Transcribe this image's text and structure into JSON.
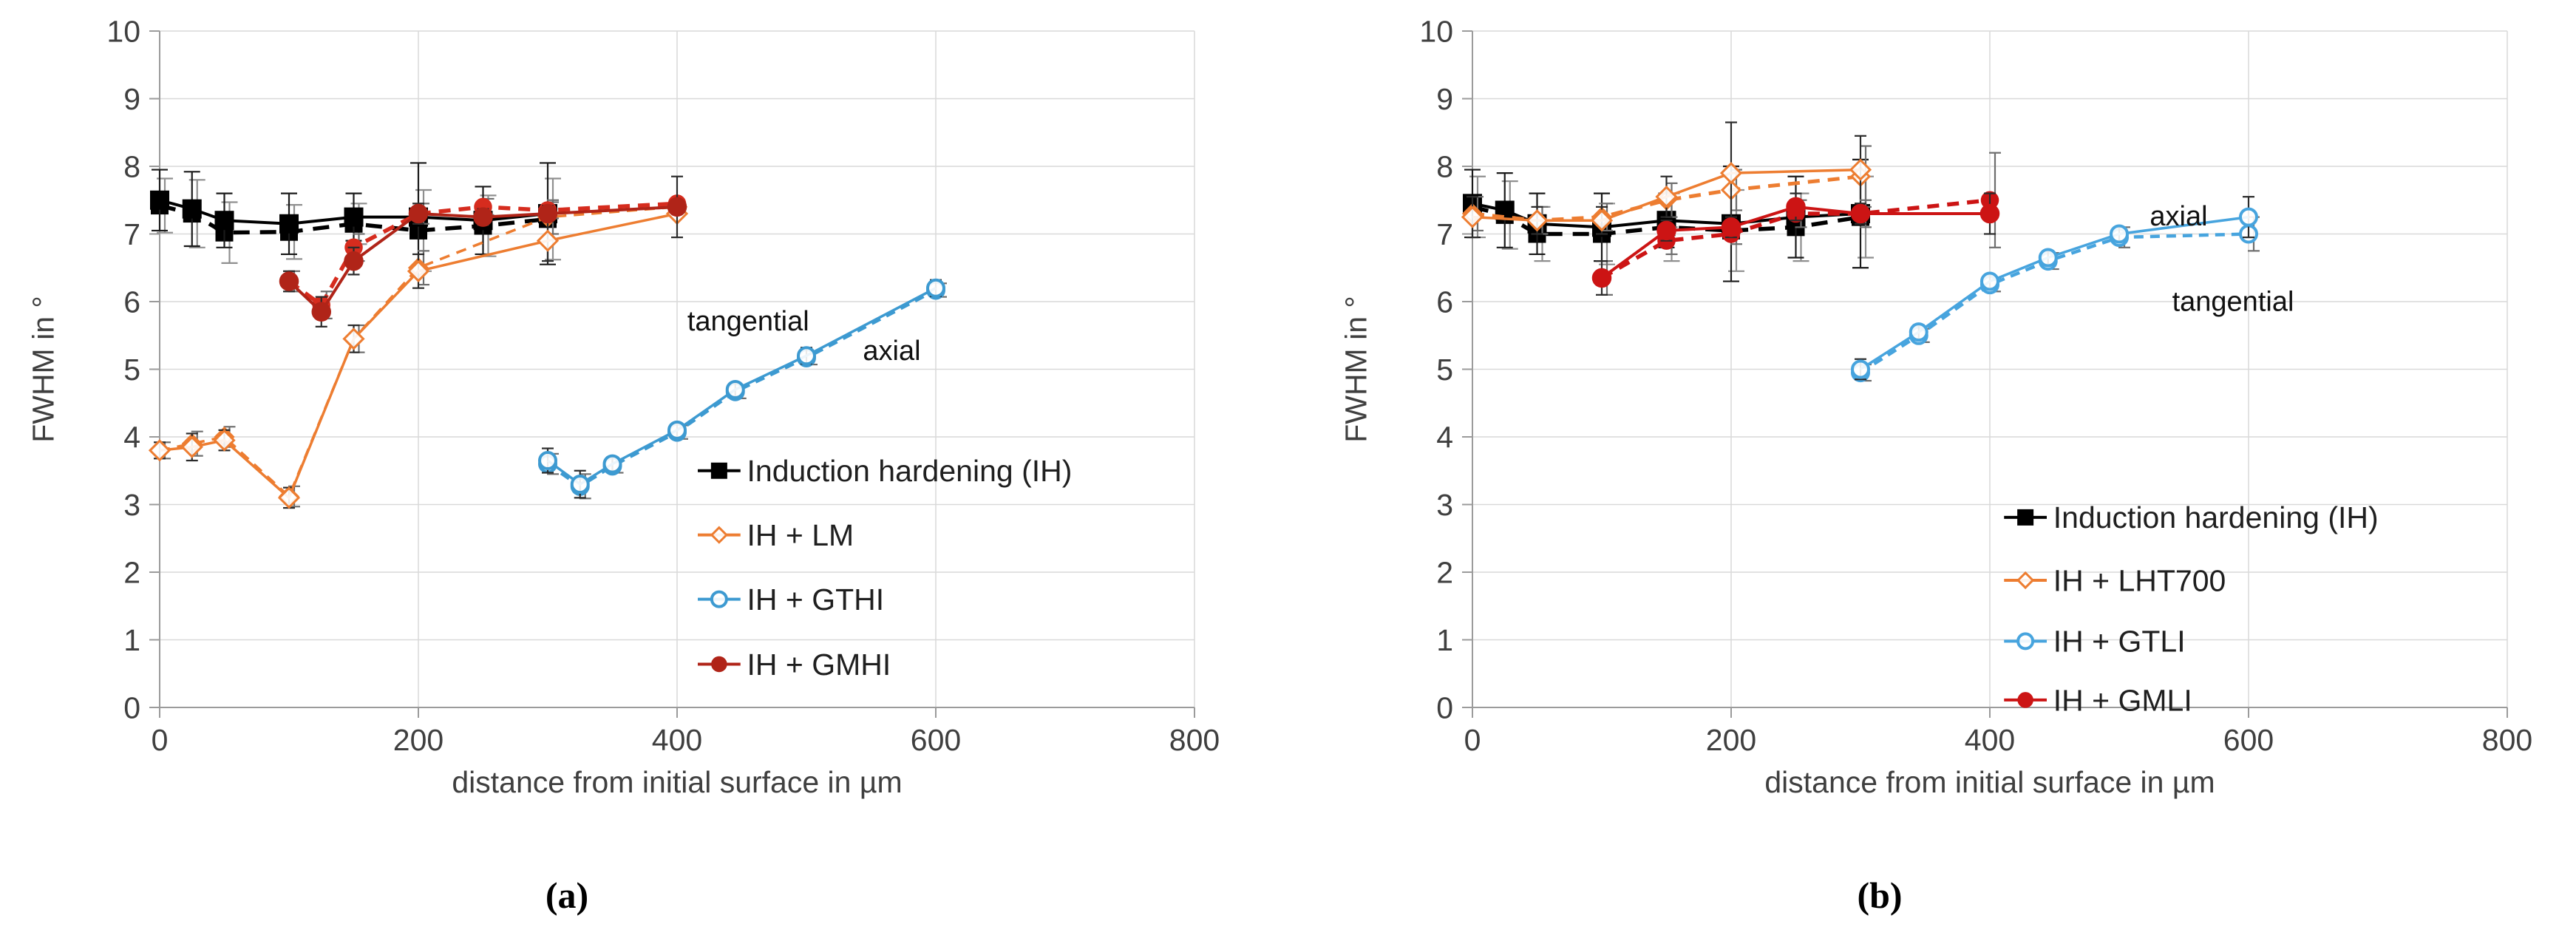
{
  "figure_background": "#ffffff",
  "styles": {
    "grid_color": "#d9d9d9",
    "axis_color": "#9b9b9b",
    "tick_label_color": "#3f3f3f",
    "axis_title_color": "#3f3f3f",
    "legend_text_color": "#1f1f1f",
    "annotation_color": "#111111",
    "black_series": "#000000",
    "orange_series": "#ED7D31",
    "blue_series_a": "#3D9AD1",
    "blue_series_b": "#47A4DE",
    "red_axial_a": "#B02418",
    "red_tangential_a": "#D62C1E",
    "red_series_b": "#CC1414"
  },
  "chart_data": [
    {
      "type": "line",
      "panel_label": "(a)",
      "xlabel": "distance from initial surface in µm",
      "ylabel": "FWHM in °",
      "xlim": [
        0,
        800
      ],
      "ylim": [
        0,
        10
      ],
      "xticks": [
        0,
        200,
        400,
        600,
        800
      ],
      "yticks": [
        0,
        1,
        2,
        3,
        4,
        5,
        6,
        7,
        8,
        9,
        10
      ],
      "grid": true,
      "legend": {
        "position": "inside-lower-right",
        "x_line": [
          416,
          449
        ],
        "x_text": 454,
        "item_y": [
          3.5,
          2.55,
          1.6,
          0.64
        ],
        "items": [
          {
            "label": "Induction hardening (IH)",
            "marker": "square-filled",
            "color": "#000000"
          },
          {
            "label": "IH + LM",
            "marker": "diamond-open",
            "color": "#ED7D31"
          },
          {
            "label": "IH + GTHI",
            "marker": "circle-open",
            "color": "#3D9AD1"
          },
          {
            "label": "IH + GMHI",
            "marker": "circle-filled",
            "color": "#B02418"
          }
        ]
      },
      "annotations": [
        {
          "text": "tangential",
          "x": 455,
          "y": 5.72
        },
        {
          "text": "axial",
          "x": 566,
          "y": 5.28
        }
      ],
      "series": [
        {
          "name": "ih-tangential",
          "orientation": "tangential",
          "color": "#000000",
          "err_color": "#8f8f8f",
          "cap": 11,
          "line_width": 5.5,
          "dash": "22 14",
          "marker": {
            "shape": "square-filled",
            "size": 12
          },
          "x": [
            0,
            25,
            50,
            100,
            150,
            200,
            250,
            300
          ],
          "y": [
            7.42,
            7.3,
            7.02,
            7.03,
            7.15,
            7.05,
            7.12,
            7.22
          ],
          "err": [
            0.4,
            0.5,
            0.45,
            0.4,
            0.3,
            0.6,
            0.45,
            0.6
          ]
        },
        {
          "name": "ih-axial",
          "orientation": "axial",
          "color": "#000000",
          "err_color": "#1a1a1a",
          "cap": 11,
          "line_width": 4,
          "dash": null,
          "marker": {
            "shape": "square-filled",
            "size": 13
          },
          "x": [
            0,
            25,
            50,
            100,
            150,
            200,
            250,
            300
          ],
          "y": [
            7.5,
            7.37,
            7.2,
            7.15,
            7.25,
            7.25,
            7.2,
            7.3
          ],
          "err": [
            0.45,
            0.55,
            0.4,
            0.45,
            0.35,
            0.8,
            0.5,
            0.75
          ]
        },
        {
          "name": "lm-tangential",
          "orientation": "tangential",
          "color": "#ED7D31",
          "err_color": "#6e6e6e",
          "cap": 8,
          "line_width": 3.5,
          "dash": "14 10",
          "marker": {
            "shape": "diamond-open",
            "size": 12
          },
          "x": [
            0,
            25,
            50,
            100,
            150,
            200,
            300,
            400
          ],
          "y": [
            3.8,
            3.9,
            4.0,
            3.12,
            5.45,
            6.5,
            7.25,
            7.4
          ],
          "err": [
            0.12,
            0.18,
            0.15,
            0.15,
            0.2,
            0.25,
            0.25,
            0
          ]
        },
        {
          "name": "lm-axial",
          "orientation": "axial",
          "color": "#ED7D31",
          "err_color": "#2b2b2b",
          "cap": 8,
          "line_width": 3.5,
          "dash": null,
          "marker": {
            "shape": "diamond-open",
            "size": 13
          },
          "x": [
            0,
            25,
            50,
            100,
            150,
            200,
            300,
            400
          ],
          "y": [
            3.8,
            3.85,
            3.95,
            3.1,
            5.45,
            6.45,
            6.9,
            7.3
          ],
          "err": [
            0.12,
            0.2,
            0.15,
            0.15,
            0.2,
            0.25,
            0.3,
            0
          ]
        },
        {
          "name": "gmhi-tangential",
          "orientation": "tangential",
          "color": "#D62C1E",
          "err_color": "#6e6e6e",
          "cap": 8,
          "line_width": 5.5,
          "dash": "16 11",
          "marker": {
            "shape": "circle-filled",
            "size": 11.5
          },
          "x": [
            100,
            125,
            150,
            200,
            250,
            300,
            400
          ],
          "y": [
            6.3,
            5.95,
            6.8,
            7.3,
            7.4,
            7.35,
            7.45
          ],
          "err": [
            0.15,
            0.2,
            0.2,
            0.15,
            0.12,
            0.12,
            0
          ]
        },
        {
          "name": "gmhi-axial",
          "orientation": "axial",
          "color": "#B02418",
          "err_color": "#2b2b2b",
          "cap": 8,
          "line_width": 4,
          "dash": null,
          "marker": {
            "shape": "circle-filled",
            "size": 12.5
          },
          "x": [
            100,
            125,
            150,
            200,
            250,
            300,
            400
          ],
          "y": [
            6.3,
            5.85,
            6.6,
            7.3,
            7.25,
            7.3,
            7.4
          ],
          "err": [
            0.15,
            0.22,
            0.2,
            0.15,
            0.12,
            0.12,
            0.45
          ]
        },
        {
          "name": "gthi-tangential",
          "orientation": "tangential",
          "color": "#3D9AD1",
          "err_color": "#6e6e6e",
          "cap": 8,
          "line_width": 4.5,
          "dash": "13 9",
          "marker": {
            "shape": "circle-open",
            "size": 11
          },
          "x": [
            300,
            325,
            350,
            400,
            445,
            500,
            600
          ],
          "y": [
            3.6,
            3.27,
            3.57,
            4.07,
            4.67,
            5.17,
            6.17
          ],
          "err": [
            0.15,
            0.18,
            0.1,
            0.1,
            0.1,
            0.1,
            0.1
          ]
        },
        {
          "name": "gthi-axial",
          "orientation": "axial",
          "color": "#3D9AD1",
          "err_color": "#2b2b2b",
          "cap": 8,
          "line_width": 3.5,
          "dash": null,
          "marker": {
            "shape": "circle-open",
            "size": 11
          },
          "x": [
            300,
            325,
            350,
            400,
            445,
            500,
            600
          ],
          "y": [
            3.65,
            3.3,
            3.6,
            4.1,
            4.7,
            5.2,
            6.2
          ],
          "err": [
            0.18,
            0.2,
            0.1,
            0.1,
            0.1,
            0.12,
            0.12
          ]
        }
      ]
    },
    {
      "type": "line",
      "panel_label": "(b)",
      "xlabel": "distance from initial surface in µm",
      "ylabel": "FWHM in °",
      "xlim": [
        0,
        800
      ],
      "ylim": [
        0,
        10
      ],
      "xticks": [
        0,
        200,
        400,
        600,
        800
      ],
      "yticks": [
        0,
        1,
        2,
        3,
        4,
        5,
        6,
        7,
        8,
        9,
        10
      ],
      "grid": true,
      "legend": {
        "position": "inside-lower-right",
        "x_line": [
          411,
          444
        ],
        "x_text": 449,
        "item_y": [
          2.81,
          1.88,
          0.98,
          0.11
        ],
        "items": [
          {
            "label": "Induction hardening (IH)",
            "marker": "square-filled",
            "color": "#000000"
          },
          {
            "label": "IH + LHT700",
            "marker": "diamond-open",
            "color": "#ED7D31"
          },
          {
            "label": "IH + GTLI",
            "marker": "circle-open",
            "color": "#47A4DE"
          },
          {
            "label": "IH + GMLI",
            "marker": "circle-filled",
            "color": "#CC1414"
          }
        ]
      },
      "annotations": [
        {
          "text": "axial",
          "x": 546,
          "y": 7.27
        },
        {
          "text": "tangential",
          "x": 588,
          "y": 6.01
        }
      ],
      "series": [
        {
          "name": "ih-tangential",
          "orientation": "tangential",
          "color": "#000000",
          "err_color": "#8f8f8f",
          "cap": 11,
          "line_width": 5.5,
          "dash": "22 14",
          "marker": {
            "shape": "square-filled",
            "size": 12
          },
          "x": [
            0,
            25,
            50,
            100,
            150,
            200,
            250,
            300
          ],
          "y": [
            7.4,
            7.28,
            7.0,
            7.0,
            7.1,
            7.05,
            7.1,
            7.25
          ],
          "err": [
            0.45,
            0.5,
            0.4,
            0.45,
            0.5,
            0.6,
            0.5,
            0.6
          ]
        },
        {
          "name": "ih-axial",
          "orientation": "axial",
          "color": "#000000",
          "err_color": "#1a1a1a",
          "cap": 11,
          "line_width": 4,
          "dash": null,
          "marker": {
            "shape": "square-filled",
            "size": 13
          },
          "x": [
            0,
            25,
            50,
            100,
            150,
            200,
            250,
            300
          ],
          "y": [
            7.45,
            7.35,
            7.15,
            7.1,
            7.2,
            7.15,
            7.25,
            7.3
          ],
          "err": [
            0.5,
            0.55,
            0.45,
            0.5,
            0.4,
            0.85,
            0.6,
            0.8
          ]
        },
        {
          "name": "lht700-tangential",
          "orientation": "tangential",
          "color": "#ED7D31",
          "err_color": "#6e6e6e",
          "cap": 8,
          "line_width": 5,
          "dash": "16 11",
          "marker": {
            "shape": "diamond-open",
            "size": 12
          },
          "x": [
            0,
            50,
            100,
            150,
            200,
            300
          ],
          "y": [
            7.3,
            7.2,
            7.25,
            7.5,
            7.65,
            7.85
          ],
          "err": [
            0.25,
            0.2,
            0.2,
            0.25,
            0.3,
            0.45
          ]
        },
        {
          "name": "lht700-axial",
          "orientation": "axial",
          "color": "#ED7D31",
          "err_color": "#2b2b2b",
          "cap": 8,
          "line_width": 3.5,
          "dash": null,
          "marker": {
            "shape": "diamond-open",
            "size": 13
          },
          "x": [
            0,
            50,
            100,
            150,
            200,
            300
          ],
          "y": [
            7.25,
            7.2,
            7.2,
            7.55,
            7.9,
            7.95
          ],
          "err": [
            0.3,
            0.2,
            0.2,
            0.3,
            0.75,
            0.5
          ]
        },
        {
          "name": "gmli-tangential",
          "orientation": "tangential",
          "color": "#CC1414",
          "err_color": "#6e6e6e",
          "cap": 8,
          "line_width": 5.5,
          "dash": "16 11",
          "marker": {
            "shape": "circle-filled",
            "size": 11.5
          },
          "x": [
            100,
            150,
            200,
            250,
            300,
            400
          ],
          "y": [
            6.35,
            6.9,
            7.0,
            7.3,
            7.3,
            7.5
          ],
          "err": [
            0.25,
            0.2,
            0.15,
            0.2,
            0.2,
            0.7
          ]
        },
        {
          "name": "gmli-axial",
          "orientation": "axial",
          "color": "#CC1414",
          "err_color": "#2b2b2b",
          "cap": 8,
          "line_width": 4,
          "dash": null,
          "marker": {
            "shape": "circle-filled",
            "size": 12.5
          },
          "x": [
            100,
            150,
            200,
            250,
            300,
            400
          ],
          "y": [
            6.35,
            7.05,
            7.1,
            7.4,
            7.3,
            7.3
          ],
          "err": [
            0.25,
            0.15,
            0.15,
            0.2,
            0.15,
            0.3
          ]
        },
        {
          "name": "gtli-tangential",
          "orientation": "tangential",
          "color": "#47A4DE",
          "err_color": "#6e6e6e",
          "cap": 8,
          "line_width": 4.5,
          "dash": "13 9",
          "marker": {
            "shape": "circle-open",
            "size": 11
          },
          "x": [
            300,
            345,
            400,
            445,
            500,
            600
          ],
          "y": [
            4.95,
            5.5,
            6.25,
            6.6,
            6.95,
            7.0
          ],
          "err": [
            0.12,
            0.1,
            0.1,
            0.12,
            0.15,
            0.25
          ]
        },
        {
          "name": "gtli-axial",
          "orientation": "axial",
          "color": "#47A4DE",
          "err_color": "#2b2b2b",
          "cap": 8,
          "line_width": 3.5,
          "dash": null,
          "marker": {
            "shape": "circle-open",
            "size": 11
          },
          "x": [
            300,
            345,
            400,
            445,
            500,
            600
          ],
          "y": [
            5.0,
            5.55,
            6.3,
            6.65,
            7.0,
            7.25
          ],
          "err": [
            0.15,
            0.1,
            0.1,
            0.1,
            0.1,
            0.3
          ]
        }
      ]
    }
  ]
}
